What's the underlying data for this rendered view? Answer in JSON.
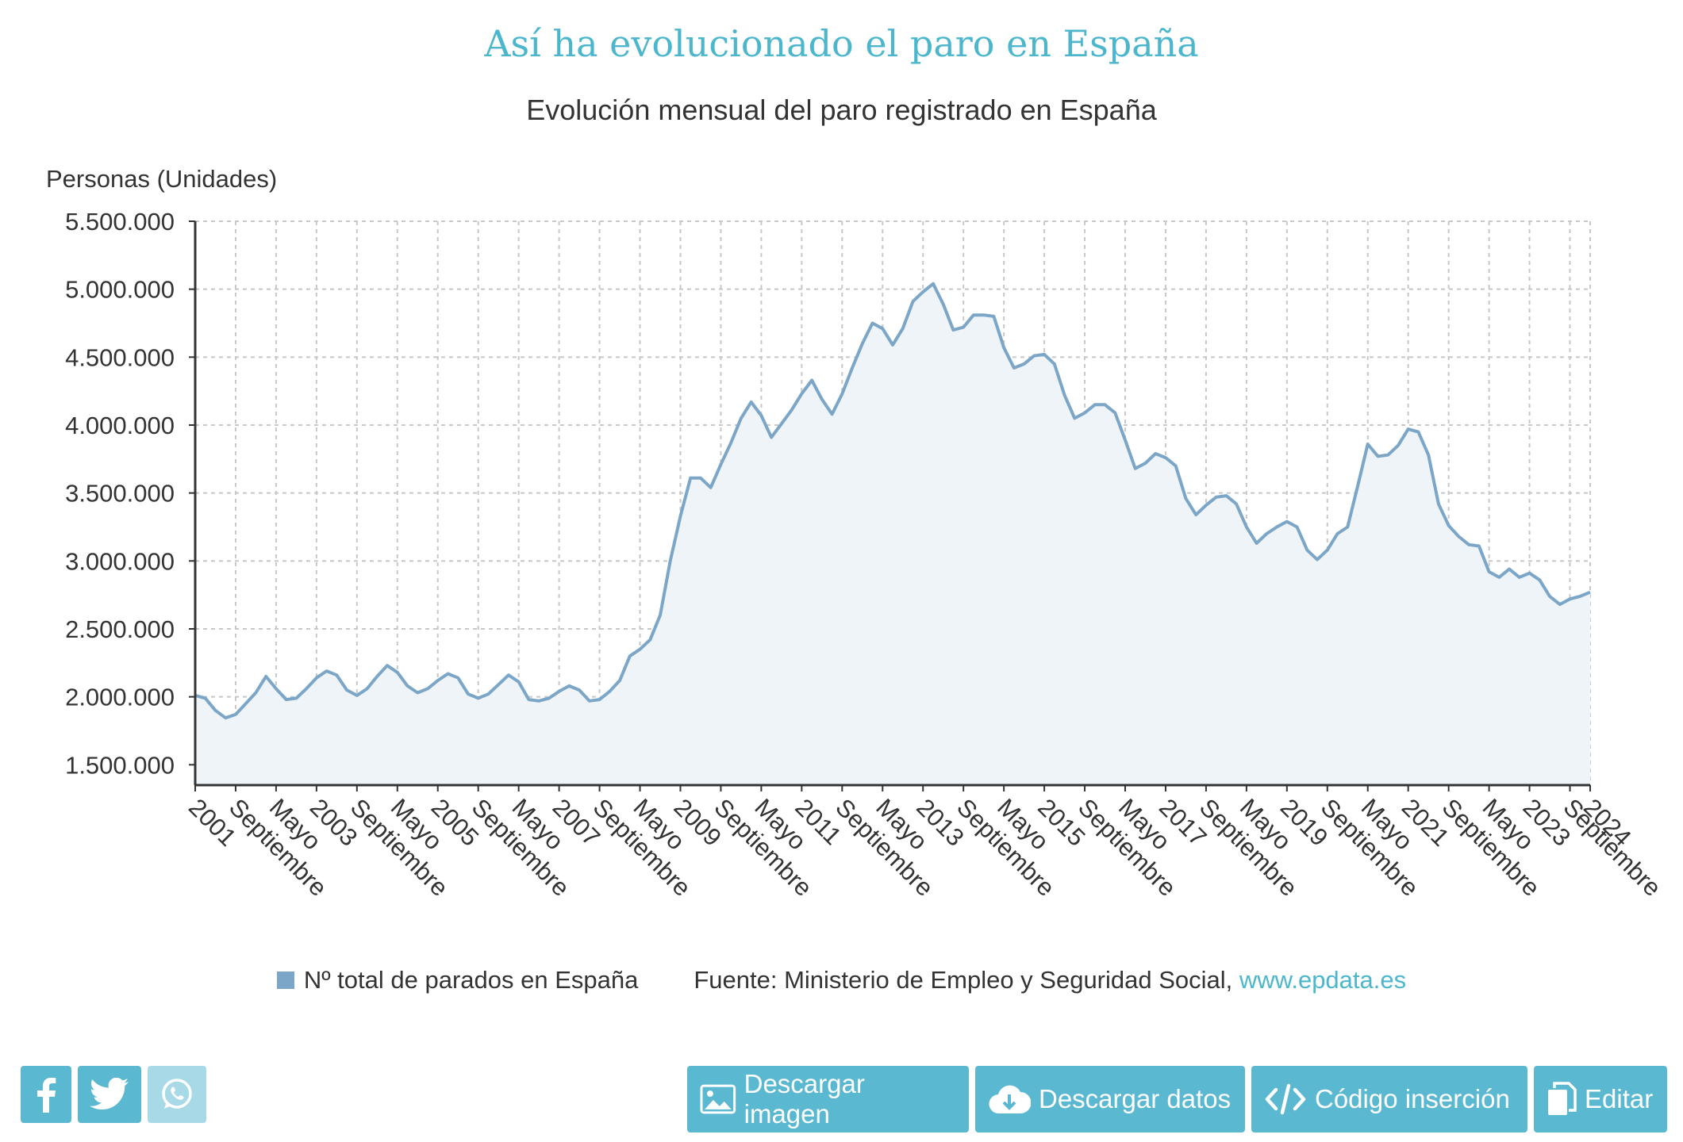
{
  "header": {
    "title": "Así ha evolucionado el paro en España",
    "subtitle": "Evolución mensual del paro registrado en España"
  },
  "chart_data": {
    "type": "area",
    "title": "Así ha evolucionado el paro en España",
    "subtitle": "Evolución mensual del paro registrado en España",
    "ylabel": "Personas (Unidades)",
    "xlabel": "",
    "ylim": [
      1350000,
      5500000
    ],
    "yticks": [
      1500000,
      2000000,
      2500000,
      3000000,
      3500000,
      4000000,
      4500000,
      5000000,
      5500000
    ],
    "ytick_labels": [
      "1.500.000",
      "2.000.000",
      "2.500.000",
      "3.000.000",
      "3.500.000",
      "4.000.000",
      "4.500.000",
      "5.000.000",
      "5.500.000"
    ],
    "xlim": [
      "2001-01",
      "2024-01"
    ],
    "xticks": [
      "2001-01",
      "2001-09",
      "2002-05",
      "2003-01",
      "2003-09",
      "2004-05",
      "2005-01",
      "2005-09",
      "2006-05",
      "2007-01",
      "2007-09",
      "2008-05",
      "2009-01",
      "2009-09",
      "2010-05",
      "2011-01",
      "2011-09",
      "2012-05",
      "2013-01",
      "2013-09",
      "2014-05",
      "2015-01",
      "2015-09",
      "2016-05",
      "2017-01",
      "2017-09",
      "2018-05",
      "2019-01",
      "2019-09",
      "2020-05",
      "2021-01",
      "2021-09",
      "2022-05",
      "2023-01",
      "2023-09",
      "2024-01"
    ],
    "xtick_labels": [
      "2001",
      "Septiembre",
      "Mayo",
      "2003",
      "Septiembre",
      "Mayo",
      "2005",
      "Septiembre",
      "Mayo",
      "2007",
      "Septiembre",
      "Mayo",
      "2009",
      "Septiembre",
      "Mayo",
      "2011",
      "Septiembre",
      "Mayo",
      "2013",
      "Septiembre",
      "Mayo",
      "2015",
      "Septiembre",
      "Mayo",
      "2017",
      "Septiembre",
      "Mayo",
      "2019",
      "Septiembre",
      "Mayo",
      "2021",
      "Septiembre",
      "Mayo",
      "2023",
      "Septiembre",
      "2024"
    ],
    "grid": true,
    "legend_position": "bottom",
    "series": [
      {
        "name": "Nº total de parados en España",
        "color": "#7ba6c7",
        "points": [
          [
            "2001-01",
            2010000
          ],
          [
            "2001-03",
            1990000
          ],
          [
            "2001-05",
            1900000
          ],
          [
            "2001-07",
            1845000
          ],
          [
            "2001-09",
            1870000
          ],
          [
            "2001-11",
            1950000
          ],
          [
            "2002-01",
            2030000
          ],
          [
            "2002-03",
            2150000
          ],
          [
            "2002-05",
            2060000
          ],
          [
            "2002-07",
            1980000
          ],
          [
            "2002-09",
            1990000
          ],
          [
            "2002-11",
            2060000
          ],
          [
            "2003-01",
            2140000
          ],
          [
            "2003-03",
            2190000
          ],
          [
            "2003-05",
            2160000
          ],
          [
            "2003-07",
            2050000
          ],
          [
            "2003-09",
            2010000
          ],
          [
            "2003-11",
            2060000
          ],
          [
            "2004-01",
            2150000
          ],
          [
            "2004-03",
            2230000
          ],
          [
            "2004-05",
            2180000
          ],
          [
            "2004-07",
            2080000
          ],
          [
            "2004-09",
            2030000
          ],
          [
            "2004-11",
            2060000
          ],
          [
            "2005-01",
            2120000
          ],
          [
            "2005-03",
            2170000
          ],
          [
            "2005-05",
            2140000
          ],
          [
            "2005-07",
            2020000
          ],
          [
            "2005-09",
            1990000
          ],
          [
            "2005-11",
            2020000
          ],
          [
            "2006-01",
            2090000
          ],
          [
            "2006-03",
            2160000
          ],
          [
            "2006-05",
            2110000
          ],
          [
            "2006-07",
            1980000
          ],
          [
            "2006-09",
            1970000
          ],
          [
            "2006-11",
            1990000
          ],
          [
            "2007-01",
            2040000
          ],
          [
            "2007-03",
            2080000
          ],
          [
            "2007-05",
            2050000
          ],
          [
            "2007-07",
            1970000
          ],
          [
            "2007-09",
            1980000
          ],
          [
            "2007-11",
            2040000
          ],
          [
            "2008-01",
            2120000
          ],
          [
            "2008-03",
            2300000
          ],
          [
            "2008-05",
            2350000
          ],
          [
            "2008-07",
            2420000
          ],
          [
            "2008-09",
            2600000
          ],
          [
            "2008-11",
            3000000
          ],
          [
            "2009-01",
            3330000
          ],
          [
            "2009-03",
            3610000
          ],
          [
            "2009-05",
            3610000
          ],
          [
            "2009-07",
            3540000
          ],
          [
            "2009-09",
            3710000
          ],
          [
            "2009-11",
            3870000
          ],
          [
            "2010-01",
            4050000
          ],
          [
            "2010-03",
            4170000
          ],
          [
            "2010-05",
            4070000
          ],
          [
            "2010-07",
            3910000
          ],
          [
            "2010-09",
            4010000
          ],
          [
            "2010-11",
            4110000
          ],
          [
            "2011-01",
            4230000
          ],
          [
            "2011-03",
            4330000
          ],
          [
            "2011-05",
            4190000
          ],
          [
            "2011-07",
            4080000
          ],
          [
            "2011-09",
            4230000
          ],
          [
            "2011-11",
            4420000
          ],
          [
            "2012-01",
            4600000
          ],
          [
            "2012-03",
            4750000
          ],
          [
            "2012-05",
            4710000
          ],
          [
            "2012-07",
            4590000
          ],
          [
            "2012-09",
            4710000
          ],
          [
            "2012-11",
            4910000
          ],
          [
            "2013-01",
            4980000
          ],
          [
            "2013-03",
            5040000
          ],
          [
            "2013-05",
            4890000
          ],
          [
            "2013-07",
            4700000
          ],
          [
            "2013-09",
            4720000
          ],
          [
            "2013-11",
            4810000
          ],
          [
            "2014-01",
            4810000
          ],
          [
            "2014-03",
            4800000
          ],
          [
            "2014-05",
            4570000
          ],
          [
            "2014-07",
            4420000
          ],
          [
            "2014-09",
            4450000
          ],
          [
            "2014-11",
            4510000
          ],
          [
            "2015-01",
            4520000
          ],
          [
            "2015-03",
            4450000
          ],
          [
            "2015-05",
            4220000
          ],
          [
            "2015-07",
            4050000
          ],
          [
            "2015-09",
            4090000
          ],
          [
            "2015-11",
            4150000
          ],
          [
            "2016-01",
            4150000
          ],
          [
            "2016-03",
            4090000
          ],
          [
            "2016-05",
            3890000
          ],
          [
            "2016-07",
            3680000
          ],
          [
            "2016-09",
            3720000
          ],
          [
            "2016-11",
            3790000
          ],
          [
            "2017-01",
            3760000
          ],
          [
            "2017-03",
            3700000
          ],
          [
            "2017-05",
            3460000
          ],
          [
            "2017-07",
            3340000
          ],
          [
            "2017-09",
            3410000
          ],
          [
            "2017-11",
            3470000
          ],
          [
            "2018-01",
            3480000
          ],
          [
            "2018-03",
            3420000
          ],
          [
            "2018-05",
            3250000
          ],
          [
            "2018-07",
            3130000
          ],
          [
            "2018-09",
            3200000
          ],
          [
            "2018-11",
            3250000
          ],
          [
            "2019-01",
            3290000
          ],
          [
            "2019-03",
            3250000
          ],
          [
            "2019-05",
            3080000
          ],
          [
            "2019-07",
            3010000
          ],
          [
            "2019-09",
            3080000
          ],
          [
            "2019-11",
            3200000
          ],
          [
            "2020-01",
            3250000
          ],
          [
            "2020-03",
            3550000
          ],
          [
            "2020-05",
            3860000
          ],
          [
            "2020-07",
            3770000
          ],
          [
            "2020-09",
            3780000
          ],
          [
            "2020-11",
            3850000
          ],
          [
            "2021-01",
            3970000
          ],
          [
            "2021-03",
            3950000
          ],
          [
            "2021-05",
            3780000
          ],
          [
            "2021-07",
            3420000
          ],
          [
            "2021-09",
            3260000
          ],
          [
            "2021-11",
            3180000
          ],
          [
            "2022-01",
            3120000
          ],
          [
            "2022-03",
            3110000
          ],
          [
            "2022-05",
            2920000
          ],
          [
            "2022-07",
            2880000
          ],
          [
            "2022-09",
            2940000
          ],
          [
            "2022-11",
            2880000
          ],
          [
            "2023-01",
            2910000
          ],
          [
            "2023-03",
            2860000
          ],
          [
            "2023-05",
            2740000
          ],
          [
            "2023-07",
            2680000
          ],
          [
            "2023-09",
            2720000
          ],
          [
            "2023-11",
            2740000
          ],
          [
            "2024-01",
            2770000
          ]
        ]
      }
    ]
  },
  "legend": {
    "series_label": "Nº total de parados en España",
    "source_prefix": "Fuente: Ministerio de Empleo y Seguridad Social, ",
    "source_link": "www.epdata.es"
  },
  "social": {
    "facebook_icon": "facebook-icon",
    "twitter_icon": "twitter-icon",
    "whatsapp_icon": "whatsapp-icon"
  },
  "actions": {
    "download_image": "Descargar imagen",
    "download_data": "Descargar datos",
    "embed_code": "Código inserción",
    "edit": "Editar"
  }
}
